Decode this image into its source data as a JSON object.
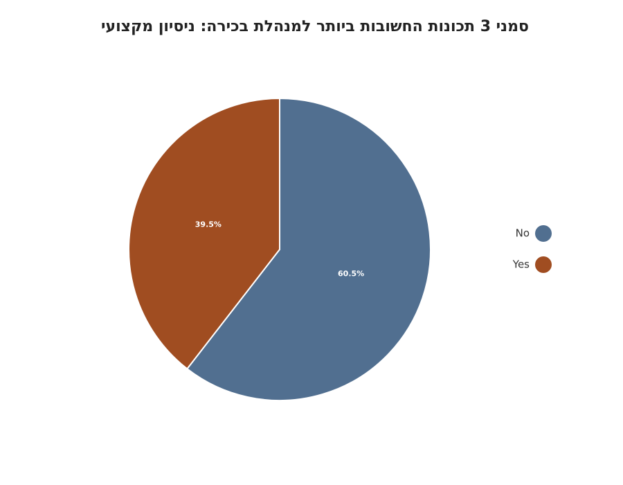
{
  "chart_data": {
    "type": "pie",
    "title": "סמני 3 תכונות החשובות ביותר למנהלת בכירה: ניסיון מקצועי",
    "slices": [
      {
        "label": "No",
        "value": 60.5,
        "value_label": "60.5%",
        "color": "#516f90"
      },
      {
        "label": "Yes",
        "value": 39.5,
        "value_label": "39.5%",
        "color": "#a04d21"
      }
    ],
    "start_angle": "12 o'clock",
    "direction": "clockwise",
    "legend_position": "right",
    "slice_border_color": "#ffffff"
  }
}
